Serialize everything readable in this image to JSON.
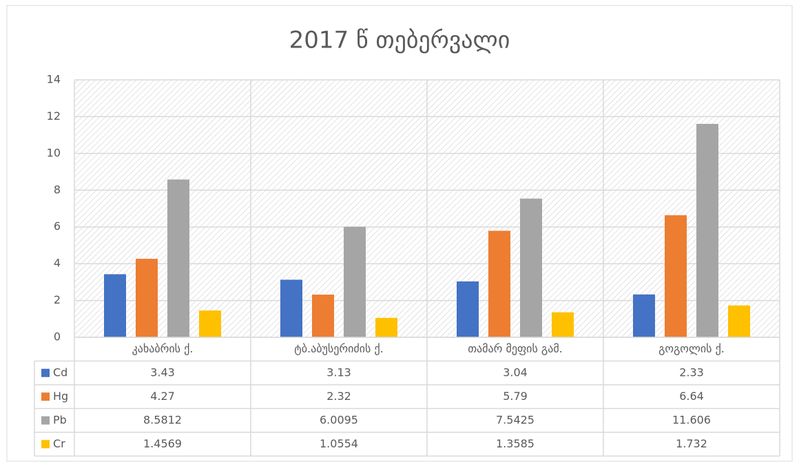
{
  "chart_data": {
    "type": "bar",
    "title": "2017 წ თებერვალი",
    "categories": [
      "კახაბრის ქ.",
      "ტბ.აბუსერიძის ქ.",
      "თამარ მეფის გამ.",
      "გოგოლის ქ."
    ],
    "series": [
      {
        "name": "Cd",
        "color": "#4472c4",
        "values": [
          3.43,
          3.13,
          3.04,
          2.33
        ]
      },
      {
        "name": "Hg",
        "color": "#ed7d31",
        "values": [
          4.27,
          2.32,
          5.79,
          6.64
        ]
      },
      {
        "name": "Pb",
        "color": "#a5a5a5",
        "values": [
          8.5812,
          6.0095,
          7.5425,
          11.606
        ]
      },
      {
        "name": "Cr",
        "color": "#ffc000",
        "values": [
          1.4569,
          1.0554,
          1.3585,
          1.732
        ]
      }
    ],
    "ylim": [
      0,
      14
    ],
    "yticks": [
      0,
      2,
      4,
      6,
      8,
      10,
      12,
      14
    ],
    "grid": true,
    "data_table": true
  }
}
